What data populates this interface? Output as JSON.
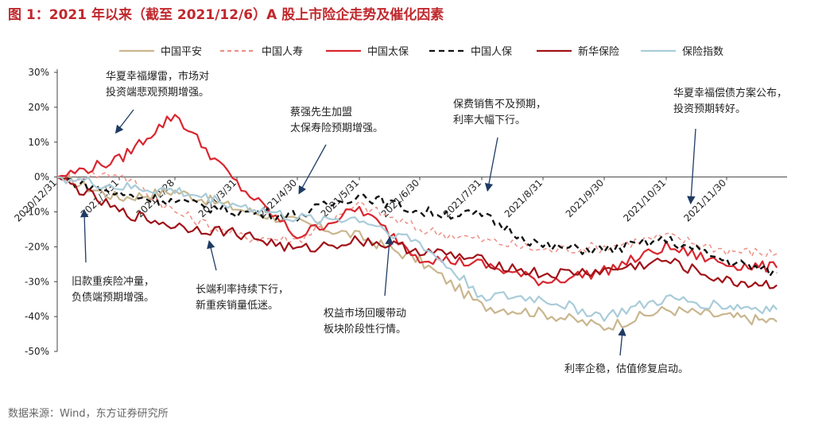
{
  "title": "图 1：2021 年以来（截至 2021/12/6）A 股上市险企走势及催化因素",
  "source": "数据来源：Wind，东方证券研究所",
  "colors": {
    "pingan": "#c9b68e",
    "renshou": "#ee8f86",
    "taibao": "#d9262f",
    "renbao": "#111111",
    "xinhua": "#a01218",
    "index": "#a9ccd9",
    "arrow": "#1f3b63"
  },
  "chart_data": {
    "type": "line",
    "x": [
      "2020/12/31",
      "2021/1/31",
      "2021/2/28",
      "2021/3/31",
      "2021/4/30",
      "2021/5/31",
      "2021/6/30",
      "2021/7/31",
      "2021/8/31",
      "2021/9/30",
      "2021/10/31",
      "2021/11/30",
      "2021/12/6"
    ],
    "x_ticks": [
      "2020/12/31",
      "2021/1/31",
      "2021/2/28",
      "2021/3/31",
      "2021/4/30",
      "2021/5/31",
      "2021/6/30",
      "2021/7/31",
      "2021/8/31",
      "2021/9/30",
      "2021/10/31",
      "2021/11/30"
    ],
    "y_ticks": [
      "30%",
      "20%",
      "10%",
      "0%",
      "-10%",
      "-20%",
      "-30%",
      "-40%",
      "-50%"
    ],
    "ylim": [
      -50,
      30
    ],
    "legend_position": "top",
    "grid": false,
    "series": [
      {
        "name": "中国平安",
        "key": "pingan",
        "style": "solid",
        "values": [
          0,
          -6,
          -4,
          -9,
          -13,
          -17,
          -24,
          -37,
          -39,
          -43,
          -38,
          -40,
          -41.5
        ]
      },
      {
        "name": "中国人寿",
        "key": "renshou",
        "style": "dashed",
        "values": [
          0,
          1,
          -10,
          -17,
          -18,
          -8,
          -15,
          -18,
          -21,
          -20,
          -17,
          -21,
          -22
        ]
      },
      {
        "name": "中国太保",
        "key": "taibao",
        "style": "solid",
        "values": [
          0,
          5,
          18,
          -2,
          -17,
          -9,
          -23,
          -25,
          -30,
          -27,
          -20,
          -25,
          -26
        ]
      },
      {
        "name": "中国人保",
        "key": "renbao",
        "style": "dashed",
        "values": [
          0,
          -5,
          -7,
          -10,
          -11,
          -5,
          -10,
          -11,
          -20,
          -21,
          -18,
          -24,
          -27.5
        ]
      },
      {
        "name": "新华保险",
        "key": "xinhua",
        "style": "solid",
        "values": [
          0,
          -10,
          -14,
          -16,
          -21,
          -18,
          -21,
          -24,
          -28,
          -27,
          -24,
          -30,
          -31
        ]
      },
      {
        "name": "保险指数",
        "key": "index",
        "style": "solid",
        "values": [
          0,
          -3,
          -4,
          -8,
          -12,
          -12,
          -19,
          -34,
          -35,
          -40,
          -35,
          -37,
          -38
        ]
      }
    ],
    "annotations": [
      {
        "lines": [
          "华夏幸福爆雷，市场对",
          "投资端悲观预期增强。"
        ]
      },
      {
        "lines": [
          "旧款重疾险冲量，",
          "负债端预期增强。"
        ]
      },
      {
        "lines": [
          "长端利率持续下行，",
          "新重疾销量低迷。"
        ]
      },
      {
        "lines": [
          "蔡强先生加盟",
          "太保寿险预期增强。"
        ]
      },
      {
        "lines": [
          "权益市场回暖带动",
          "板块阶段性行情。"
        ]
      },
      {
        "lines": [
          "保费销售不及预期，",
          "利率大幅下行。"
        ]
      },
      {
        "lines": [
          "利率企稳，估值修复启动。"
        ]
      },
      {
        "lines": [
          "华夏幸福偿债方案公布，",
          "投资预期转好。"
        ]
      }
    ]
  }
}
